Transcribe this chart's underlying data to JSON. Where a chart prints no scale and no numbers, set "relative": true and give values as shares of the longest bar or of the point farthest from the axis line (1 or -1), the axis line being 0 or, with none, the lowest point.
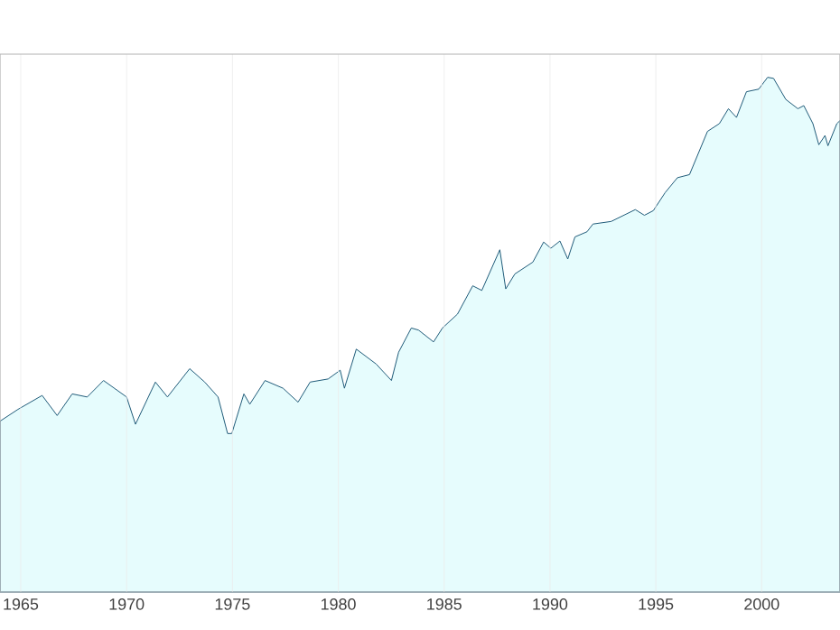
{
  "chart_data": {
    "type": "area",
    "relative": true,
    "color": "#1f5a78",
    "grid": "x",
    "xlim": [
      1964.02,
      2003.7
    ],
    "xticks": [
      1965,
      1970,
      1975,
      1980,
      1985,
      1990,
      1995,
      2000
    ],
    "x": [
      1964.02,
      1964.87,
      1966.01,
      1966.72,
      1967.43,
      1968.14,
      1968.91,
      1970.0,
      1970.42,
      1971.36,
      1971.93,
      1972.98,
      1973.69,
      1974.32,
      1974.77,
      1974.97,
      1975.54,
      1975.82,
      1976.54,
      1977.39,
      1978.1,
      1978.67,
      1979.52,
      1980.09,
      1980.29,
      1980.85,
      1981.79,
      1982.51,
      1982.85,
      1983.45,
      1983.79,
      1984.5,
      1984.92,
      1985.63,
      1986.35,
      1986.78,
      1987.63,
      1987.91,
      1988.34,
      1989.19,
      1989.7,
      1990.04,
      1990.47,
      1990.84,
      1991.18,
      1991.75,
      1992.03,
      1992.89,
      1994.03,
      1994.46,
      1994.88,
      1995.44,
      1996.02,
      1996.59,
      1997.44,
      1998.0,
      1998.43,
      1998.81,
      1999.28,
      1999.86,
      2000.28,
      2000.56,
      2001.14,
      2001.71,
      2001.99,
      2002.42,
      2002.7,
      2002.99,
      2003.13,
      2003.55,
      2003.7
    ],
    "values": [
      0.332,
      0.355,
      0.382,
      0.343,
      0.385,
      0.379,
      0.411,
      0.379,
      0.326,
      0.408,
      0.379,
      0.434,
      0.408,
      0.379,
      0.308,
      0.308,
      0.385,
      0.365,
      0.411,
      0.396,
      0.369,
      0.408,
      0.414,
      0.431,
      0.396,
      0.472,
      0.443,
      0.411,
      0.466,
      0.513,
      0.509,
      0.486,
      0.513,
      0.54,
      0.595,
      0.586,
      0.665,
      0.589,
      0.618,
      0.641,
      0.68,
      0.668,
      0.682,
      0.647,
      0.69,
      0.7,
      0.715,
      0.72,
      0.743,
      0.732,
      0.741,
      0.776,
      0.805,
      0.811,
      0.895,
      0.91,
      0.939,
      0.922,
      0.972,
      0.977,
      1.0,
      0.998,
      0.957,
      0.939,
      0.945,
      0.91,
      0.869,
      0.887,
      0.867,
      0.91,
      0.916
    ]
  }
}
